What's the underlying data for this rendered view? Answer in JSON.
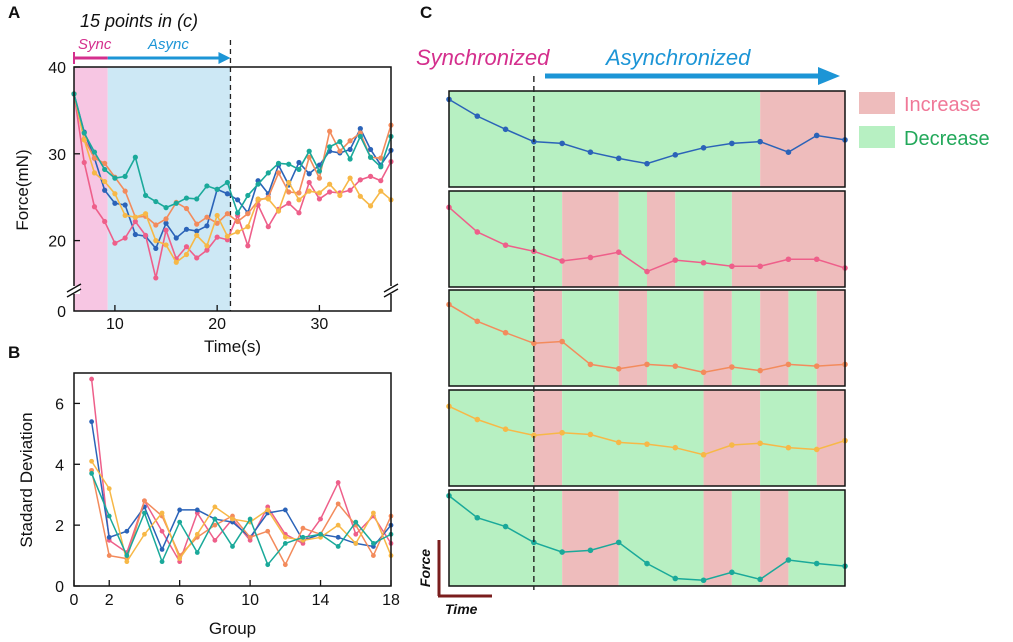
{
  "colors": {
    "blue": "#2b63b8",
    "pink": "#ee5f8a",
    "orange": "#f38b5c",
    "yellow": "#f7b847",
    "teal": "#1aa99a",
    "sync_fill": "#f7c6e3",
    "async_fill": "#cde8f5",
    "increase_fill": "#eebcbc",
    "decrease_fill": "#b7f0c2",
    "sync_text": "#d42f8d",
    "async_text": "#1c95d6",
    "increase_text": "#f07898",
    "decrease_text": "#22a85a",
    "axis_mini": "#7a1d1d"
  },
  "chart_data": [
    {
      "id": "A",
      "type": "line",
      "panel_label": "A",
      "xlabel": "Time(s)",
      "ylabel": "Force(mN)",
      "xlim": [
        6,
        37
      ],
      "ylim_display": [
        0,
        40
      ],
      "ylim_broken_range": [
        15,
        40
      ],
      "xticks": [
        10,
        20,
        30
      ],
      "yticks": [
        0,
        20,
        30,
        40
      ],
      "annotation_top": "15 points in (c)",
      "sync_label": "Sync",
      "async_label": "Async",
      "sync_region": [
        6,
        9.3
      ],
      "async_region": [
        9.3,
        21.3
      ],
      "dashed_x": 21.3,
      "x": [
        6,
        7,
        8,
        9,
        10,
        11,
        12,
        13,
        14,
        15,
        16,
        17,
        18,
        19,
        20,
        21,
        22,
        23,
        24,
        25,
        26,
        27,
        28,
        29,
        30,
        31,
        32,
        33,
        34,
        35,
        36,
        37
      ],
      "series": [
        {
          "name": "blue",
          "values": [
            36.9,
            32.5,
            29.5,
            25.8,
            24.3,
            24.1,
            20.7,
            20.5,
            19.1,
            22,
            20.3,
            21.3,
            21.1,
            21.7,
            25.9,
            25.4,
            24.7,
            23.2,
            26.9,
            25.4,
            28.7,
            26.4,
            29,
            27.7,
            28.7,
            30.3,
            30.1,
            30.5,
            32.9,
            30.5,
            28.7,
            30.4
          ]
        },
        {
          "name": "pink",
          "values": [
            36.9,
            29,
            23.9,
            22.2,
            19.7,
            20.3,
            22.2,
            20.6,
            15.7,
            21.2,
            17.9,
            19.3,
            18,
            18.9,
            20.4,
            20.1,
            22.9,
            19.4,
            24.1,
            21.6,
            23.6,
            24.3,
            23.2,
            26.7,
            24.8,
            25.6,
            25.5,
            25.8,
            27,
            27.4,
            26.9,
            29.1
          ]
        },
        {
          "name": "orange",
          "values": [
            36.9,
            31.7,
            29.5,
            28.9,
            27.3,
            25.7,
            22.7,
            22.8,
            21.8,
            22.5,
            24.4,
            23.7,
            21.9,
            22.7,
            22,
            23.1,
            22.2,
            23.1,
            24.6,
            25,
            27.8,
            25.6,
            25.5,
            29.6,
            27.2,
            32.6,
            30.3,
            31.5,
            32.4,
            29.6,
            29.5,
            33.3
          ]
        },
        {
          "name": "yellow",
          "values": [
            36.9,
            31.6,
            27.8,
            26.8,
            25.4,
            22.9,
            22.7,
            23.1,
            20,
            19.5,
            17.5,
            18.4,
            20.6,
            19.4,
            22.9,
            20.5,
            21,
            21.6,
            24.8,
            24.8,
            23.4,
            26.7,
            24.7,
            25.7,
            25.5,
            26.5,
            25.2,
            27.2,
            25.1,
            24,
            25.7,
            24.7
          ]
        },
        {
          "name": "teal",
          "values": [
            36.9,
            32.4,
            30.2,
            28.2,
            27.2,
            27.4,
            29.6,
            25.2,
            24.5,
            23.8,
            24.3,
            24.9,
            24.8,
            26.3,
            25.9,
            26.7,
            23.2,
            25.2,
            26.5,
            27.8,
            28.9,
            28.8,
            28.2,
            30.3,
            28,
            30.8,
            31.4,
            29.4,
            32,
            29.6,
            28.5,
            32
          ]
        }
      ]
    },
    {
      "id": "B",
      "type": "line",
      "panel_label": "B",
      "xlabel": "Group",
      "ylabel": "Stadard Deviation",
      "xlim": [
        0,
        18
      ],
      "ylim": [
        0,
        7
      ],
      "xticks": [
        0,
        2,
        6,
        10,
        14,
        18
      ],
      "yticks": [
        0,
        2,
        4,
        6
      ],
      "x": [
        1,
        2,
        3,
        4,
        5,
        6,
        7,
        8,
        9,
        10,
        11,
        12,
        13,
        14,
        15,
        16,
        17,
        18
      ],
      "series": [
        {
          "name": "pink",
          "values": [
            6.8,
            1.5,
            1.1,
            2.8,
            1.8,
            0.8,
            2.4,
            1.5,
            2.2,
            1.5,
            2.6,
            1.7,
            1.4,
            2.2,
            3.4,
            1.7,
            2.3,
            1.4
          ]
        },
        {
          "name": "blue",
          "values": [
            5.4,
            1.6,
            1.8,
            2.6,
            1.2,
            2.5,
            2.5,
            2.2,
            2.1,
            1.6,
            2.4,
            2.5,
            1.5,
            1.7,
            1.6,
            1.4,
            1.3,
            2.0
          ]
        },
        {
          "name": "orange",
          "values": [
            3.8,
            1.0,
            0.9,
            2.8,
            2.3,
            1.0,
            1.6,
            2.0,
            2.3,
            1.6,
            1.8,
            0.7,
            1.9,
            1.7,
            2.7,
            2.0,
            1.0,
            2.3
          ]
        },
        {
          "name": "yellow",
          "values": [
            4.1,
            3.2,
            0.8,
            1.7,
            2.4,
            0.9,
            1.7,
            2.6,
            2.2,
            2.1,
            2.5,
            1.6,
            1.5,
            1.6,
            2.0,
            1.4,
            2.4,
            1.0
          ]
        },
        {
          "name": "teal",
          "values": [
            3.7,
            2.3,
            1.0,
            2.4,
            0.8,
            2.1,
            1.1,
            2.2,
            1.3,
            2.2,
            0.7,
            1.4,
            1.6,
            1.7,
            1.3,
            2.1,
            1.4,
            1.7
          ]
        }
      ]
    },
    {
      "id": "C",
      "type": "line",
      "panel_label": "C",
      "sync_label": "Synchronized",
      "async_label": "Asynchronized",
      "legend": [
        {
          "label": "Increase",
          "color_key": "increase_fill",
          "text_key": "increase_text"
        },
        {
          "label": "Decrease",
          "color_key": "decrease_fill",
          "text_key": "decrease_text"
        }
      ],
      "axis_y_label": "Force",
      "axis_x_label": "Time",
      "points": 15,
      "dashed_index": 3,
      "series": [
        {
          "name": "blue",
          "values": [
            0.95,
            0.76,
            0.61,
            0.47,
            0.45,
            0.35,
            0.28,
            0.22,
            0.32,
            0.4,
            0.45,
            0.47,
            0.35,
            0.54,
            0.49
          ]
        },
        {
          "name": "pink",
          "values": [
            0.86,
            0.58,
            0.43,
            0.36,
            0.25,
            0.29,
            0.35,
            0.13,
            0.26,
            0.23,
            0.19,
            0.19,
            0.27,
            0.27,
            0.17
          ]
        },
        {
          "name": "orange",
          "values": [
            0.88,
            0.69,
            0.56,
            0.44,
            0.46,
            0.2,
            0.15,
            0.2,
            0.18,
            0.11,
            0.17,
            0.13,
            0.2,
            0.18,
            0.2
          ]
        },
        {
          "name": "yellow",
          "values": [
            0.86,
            0.71,
            0.6,
            0.53,
            0.56,
            0.54,
            0.45,
            0.43,
            0.39,
            0.31,
            0.42,
            0.44,
            0.39,
            0.37,
            0.47
          ]
        },
        {
          "name": "teal",
          "values": [
            0.98,
            0.73,
            0.63,
            0.45,
            0.34,
            0.36,
            0.45,
            0.21,
            0.04,
            0.02,
            0.11,
            0.03,
            0.25,
            0.21,
            0.18
          ]
        }
      ],
      "regions": [
        [
          [
            "d",
            0,
            11
          ],
          [
            "i",
            11,
            14
          ],
          [
            "d",
            14,
            15
          ]
        ],
        [
          [
            "d",
            0,
            3
          ],
          [
            "d",
            3,
            4
          ],
          [
            "i",
            4,
            6
          ],
          [
            "d",
            6,
            7
          ],
          [
            "i",
            7,
            8
          ],
          [
            "d",
            8,
            10
          ],
          [
            "i",
            10,
            15
          ]
        ],
        [
          [
            "d",
            0,
            3
          ],
          [
            "i",
            3,
            4
          ],
          [
            "d",
            4,
            6
          ],
          [
            "i",
            6,
            7
          ],
          [
            "d",
            7,
            9
          ],
          [
            "i",
            9,
            10
          ],
          [
            "d",
            10,
            11
          ],
          [
            "i",
            11,
            12
          ],
          [
            "d",
            12,
            13
          ],
          [
            "i",
            13,
            15
          ]
        ],
        [
          [
            "d",
            0,
            3
          ],
          [
            "i",
            3,
            4
          ],
          [
            "d",
            4,
            9
          ],
          [
            "i",
            9,
            11
          ],
          [
            "d",
            11,
            13
          ],
          [
            "i",
            13,
            15
          ]
        ],
        [
          [
            "d",
            0,
            4
          ],
          [
            "i",
            4,
            6
          ],
          [
            "d",
            6,
            9
          ],
          [
            "i",
            9,
            10
          ],
          [
            "d",
            10,
            11
          ],
          [
            "i",
            11,
            12
          ],
          [
            "d",
            12,
            15
          ]
        ]
      ]
    }
  ]
}
